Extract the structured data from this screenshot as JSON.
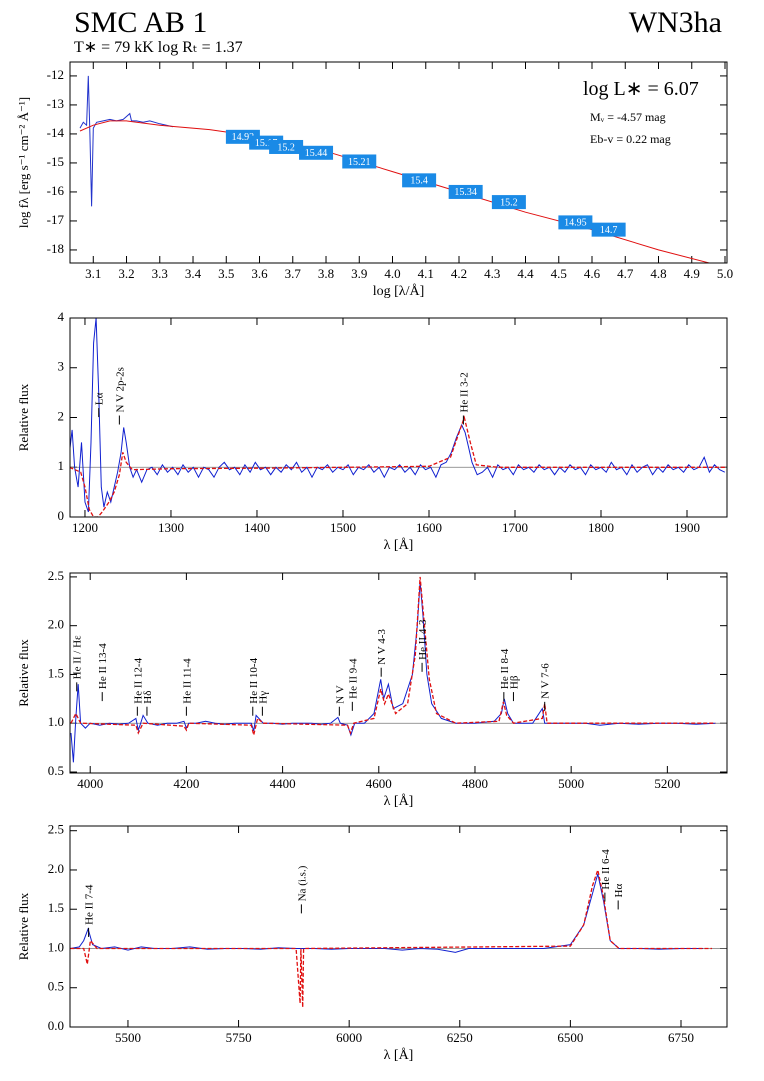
{
  "header": {
    "title": "SMC AB 1",
    "spectral_type": "WN3ha",
    "parameters": "T∗ =  79 kK  log Rₜ = 1.37"
  },
  "chart_data": [
    {
      "type": "line",
      "xlabel": "log [λ/Å]",
      "ylabel": "log fλ [erg s⁻¹ cm⁻² Å⁻¹]",
      "luminosity": "log L∗ =  6.07",
      "mv": "Mᵥ = -4.57 mag",
      "ebv": "Eb-v = 0.22 mag",
      "xlim": [
        3.03,
        5.006
      ],
      "ylim": [
        -18.45,
        -11.52
      ],
      "xticks": [
        3.1,
        3.2,
        3.3,
        3.4,
        3.5,
        3.6,
        3.7,
        3.8,
        3.9,
        {
          "value": 4,
          "label": "4.0"
        },
        4.1,
        4.2,
        4.3,
        4.4,
        4.5,
        4.6,
        4.7,
        4.8,
        4.9,
        {
          "value": 5,
          "label": "5.0"
        }
      ],
      "yticks": [
        -12,
        -13,
        -14,
        -15,
        -16,
        -17,
        -18
      ],
      "series": [
        {
          "color": "#2233cc",
          "x": [
            3.06,
            3.07,
            3.08,
            3.085,
            3.09,
            3.095,
            3.1,
            3.11,
            3.13,
            3.15,
            3.17,
            3.19,
            3.21,
            3.215,
            3.23,
            3.25,
            3.27,
            3.3,
            3.32,
            3.34
          ],
          "values": [
            -13.8,
            -13.6,
            -13.7,
            -12.0,
            -14.0,
            -16.5,
            -13.8,
            -13.6,
            -13.55,
            -13.5,
            -13.55,
            -13.5,
            -13.3,
            -13.55,
            -13.55,
            -13.6,
            -13.55,
            -13.65,
            -13.7,
            -13.75
          ]
        },
        {
          "color": "#e01010",
          "x": [
            3.06,
            3.1,
            3.15,
            3.2,
            3.3,
            3.35,
            3.45,
            3.6,
            3.8,
            4.0,
            4.2,
            4.4,
            4.6,
            4.8,
            4.97
          ],
          "values": [
            -13.9,
            -13.7,
            -13.55,
            -13.55,
            -13.7,
            -13.75,
            -13.85,
            -14.1,
            -14.6,
            -15.3,
            -16.0,
            -16.7,
            -17.3,
            -18.0,
            -18.5
          ]
        }
      ],
      "photometry": {
        "color": "#1a8ae6",
        "x": [
          3.55,
          3.62,
          3.68,
          3.77,
          3.9,
          4.08,
          4.22,
          4.35,
          4.55,
          4.65
        ],
        "values": [
          -14.1,
          -14.3,
          -14.45,
          -14.65,
          -14.95,
          -15.6,
          -16.0,
          -16.35,
          -17.05,
          -17.3
        ],
        "labels": [
          14.92,
          15.17,
          15.2,
          15.44,
          15.21,
          15.4,
          15.34,
          15.2,
          14.95,
          14.7
        ]
      }
    },
    {
      "type": "line",
      "xlabel": "λ [Å]",
      "ylabel": "Relative flux",
      "xlim": [
        1182.6,
        1946.5
      ],
      "ylim": [
        0,
        4
      ],
      "xticks": [
        1200,
        1300,
        1400,
        1500,
        1600,
        1700,
        1800,
        1900
      ],
      "yticks": [
        0,
        1,
        2,
        3,
        4
      ],
      "reference_line": 1,
      "series": [
        {
          "color": "#1020d0",
          "x": [
            1182,
            1185,
            1188,
            1192,
            1196,
            1200,
            1204,
            1207,
            1210,
            1213,
            1216,
            1219,
            1222,
            1226,
            1230,
            1234,
            1238,
            1242,
            1245,
            1248,
            1252,
            1256,
            1260,
            1266,
            1272,
            1278,
            1284,
            1290,
            1296,
            1302,
            1308,
            1314,
            1320,
            1326,
            1332,
            1338,
            1344,
            1350,
            1356,
            1362,
            1368,
            1374,
            1380,
            1386,
            1392,
            1398,
            1404,
            1410,
            1416,
            1422,
            1428,
            1434,
            1440,
            1446,
            1452,
            1458,
            1464,
            1470,
            1476,
            1482,
            1488,
            1494,
            1500,
            1506,
            1512,
            1518,
            1524,
            1530,
            1536,
            1542,
            1548,
            1554,
            1560,
            1566,
            1572,
            1578,
            1584,
            1590,
            1596,
            1602,
            1608,
            1614,
            1620,
            1626,
            1632,
            1638,
            1642,
            1646,
            1650,
            1656,
            1662,
            1668,
            1674,
            1680,
            1686,
            1692,
            1698,
            1704,
            1710,
            1716,
            1722,
            1728,
            1734,
            1740,
            1746,
            1752,
            1758,
            1764,
            1770,
            1776,
            1782,
            1788,
            1794,
            1800,
            1806,
            1812,
            1818,
            1824,
            1830,
            1836,
            1842,
            1848,
            1854,
            1860,
            1866,
            1872,
            1878,
            1884,
            1890,
            1896,
            1902,
            1908,
            1914,
            1920,
            1926,
            1932,
            1938,
            1944
          ],
          "values": [
            1.3,
            1.75,
            1.0,
            0.6,
            1.5,
            0.3,
            0.1,
            1.5,
            3.5,
            4.0,
            2.5,
            0.6,
            0.2,
            0.5,
            0.3,
            0.6,
            0.9,
            1.3,
            1.8,
            1.5,
            1.0,
            0.8,
            0.95,
            0.7,
            0.95,
            1.0,
            0.85,
            1.05,
            0.9,
            1.0,
            0.85,
            1.05,
            0.9,
            1.0,
            0.8,
            1.0,
            0.95,
            0.8,
            1.0,
            1.1,
            0.95,
            1.0,
            0.85,
            1.05,
            0.9,
            1.1,
            0.95,
            1.0,
            0.85,
            1.0,
            0.9,
            1.05,
            0.95,
            1.1,
            0.9,
            1.0,
            0.8,
            1.0,
            0.95,
            1.05,
            0.9,
            1.0,
            0.95,
            1.05,
            0.85,
            1.0,
            0.95,
            1.05,
            0.9,
            1.0,
            0.8,
            1.0,
            0.95,
            1.05,
            0.9,
            1.0,
            0.85,
            1.05,
            0.95,
            1.0,
            0.8,
            1.05,
            1.1,
            1.3,
            1.6,
            1.85,
            1.7,
            1.4,
            1.1,
            0.85,
            0.9,
            1.0,
            0.8,
            1.05,
            0.95,
            1.0,
            0.85,
            1.05,
            0.95,
            1.0,
            0.9,
            1.05,
            0.95,
            1.0,
            0.85,
            1.0,
            0.9,
            1.05,
            0.95,
            1.0,
            0.85,
            1.05,
            0.95,
            1.0,
            0.9,
            1.1,
            0.95,
            1.0,
            0.85,
            1.05,
            0.9,
            1.0,
            1.05,
            0.85,
            1.0,
            0.9,
            1.05,
            0.95,
            1.0,
            0.9,
            1.05,
            0.95,
            1.0,
            1.2,
            0.9,
            1.05,
            0.95,
            0.9
          ]
        },
        {
          "color": "#e01010",
          "dashed": true,
          "x": [
            1182,
            1195,
            1200,
            1205,
            1210,
            1215,
            1220,
            1228,
            1234,
            1240,
            1244,
            1248,
            1255,
            1300,
            1400,
            1500,
            1600,
            1625,
            1635,
            1641,
            1648,
            1655,
            1680,
            1800,
            1946
          ],
          "values": [
            1.0,
            0.9,
            0.6,
            0.15,
            0.0,
            0.0,
            0.1,
            0.3,
            0.5,
            0.85,
            1.3,
            1.1,
            0.95,
            0.97,
            0.98,
            1.0,
            1.02,
            1.2,
            1.7,
            2.0,
            1.5,
            1.05,
            1.0,
            1.0,
            1.0
          ]
        }
      ],
      "annotations": [
        {
          "text": "Lα",
          "x": 1216,
          "y": 2.25
        },
        {
          "text": "N V 2p-2s",
          "x": 1240,
          "y": 2.1
        },
        {
          "text": "He II 3-2",
          "x": 1640,
          "y": 2.1
        }
      ]
    },
    {
      "type": "line",
      "xlabel": "λ [Å]",
      "ylabel": "Relative flux",
      "xlim": [
        3958,
        5324
      ],
      "ylim": [
        0.49,
        2.54
      ],
      "xticks": [
        4000,
        4200,
        4400,
        4600,
        4800,
        5000,
        5200
      ],
      "yticks": [
        0.5,
        {
          "value": 1,
          "label": "1.0"
        },
        1.5,
        {
          "value": 2,
          "label": "2.0"
        },
        2.5
      ],
      "reference_line": 1,
      "series": [
        {
          "color": "#1020d0",
          "x": [
            3960,
            3965,
            3970,
            3975,
            3980,
            3990,
            4000,
            4020,
            4040,
            4060,
            4080,
            4095,
            4100,
            4105,
            4110,
            4120,
            4140,
            4160,
            4180,
            4195,
            4200,
            4205,
            4220,
            4240,
            4260,
            4280,
            4300,
            4320,
            4335,
            4340,
            4345,
            4360,
            4380,
            4400,
            4420,
            4440,
            4460,
            4480,
            4500,
            4515,
            4520,
            4535,
            4542,
            4550,
            4570,
            4590,
            4604,
            4610,
            4620,
            4630,
            4650,
            4670,
            4680,
            4686,
            4692,
            4700,
            4710,
            4730,
            4760,
            4800,
            4840,
            4855,
            4861,
            4868,
            4880,
            4900,
            4920,
            4940,
            4945,
            4960,
            5000,
            5030,
            5060,
            5100,
            5140,
            5180,
            5220,
            5260,
            5300
          ],
          "values": [
            0.9,
            0.6,
            1.05,
            1.4,
            1.0,
            0.95,
            1.0,
            0.98,
            1.0,
            0.99,
            1.0,
            1.05,
            0.93,
            1.0,
            1.08,
            1.0,
            0.98,
            1.0,
            1.0,
            1.02,
            0.95,
            1.0,
            1.0,
            1.02,
            1.0,
            0.99,
            1.0,
            1.0,
            1.0,
            0.92,
            1.08,
            1.0,
            1.0,
            0.99,
            1.0,
            1.0,
            1.0,
            0.99,
            1.0,
            1.06,
            1.0,
            0.98,
            0.88,
            1.0,
            1.0,
            1.1,
            1.45,
            1.25,
            1.4,
            1.15,
            1.2,
            1.5,
            2.0,
            2.45,
            2.1,
            1.5,
            1.2,
            1.05,
            1.0,
            1.0,
            1.02,
            1.1,
            1.25,
            1.1,
            1.0,
            1.0,
            1.0,
            1.15,
            1.0,
            1.0,
            1.0,
            1.0,
            0.98,
            1.0,
            0.99,
            1.0,
            1.0,
            0.99,
            1.0
          ]
        },
        {
          "color": "#e01010",
          "dashed": true,
          "x": [
            3960,
            3970,
            3980,
            4095,
            4100,
            4110,
            4195,
            4200,
            4205,
            4335,
            4340,
            4348,
            4360,
            4535,
            4541,
            4548,
            4590,
            4604,
            4612,
            4620,
            4635,
            4660,
            4676,
            4686,
            4695,
            4705,
            4720,
            4760,
            4850,
            4859,
            4866,
            4880,
            4940,
            4945,
            4950,
            5300
          ],
          "values": [
            1.0,
            1.1,
            1.0,
            0.98,
            0.9,
            1.0,
            0.97,
            0.93,
            1.0,
            0.98,
            0.88,
            1.05,
            1.0,
            0.98,
            0.9,
            1.0,
            1.05,
            1.35,
            1.2,
            1.3,
            1.1,
            1.2,
            1.7,
            2.5,
            2.0,
            1.45,
            1.1,
            1.0,
            1.02,
            1.22,
            1.08,
            1.0,
            1.05,
            1.2,
            1.0,
            1.0
          ]
        }
      ],
      "annotations": [
        {
          "text": "He II / Hε",
          "x": 3972,
          "y": 1.45
        },
        {
          "text": "He II 13-4",
          "x": 4025,
          "y": 1.35
        },
        {
          "text": "He II 12-4",
          "x": 4098,
          "y": 1.2
        },
        {
          "text": "Hδ",
          "x": 4118,
          "y": 1.2
        },
        {
          "text": "He II 11-4",
          "x": 4200,
          "y": 1.2
        },
        {
          "text": "He II 10-4",
          "x": 4338,
          "y": 1.2
        },
        {
          "text": "Hγ",
          "x": 4358,
          "y": 1.2
        },
        {
          "text": "N V",
          "x": 4518,
          "y": 1.2
        },
        {
          "text": "He II 9-4",
          "x": 4545,
          "y": 1.25
        },
        {
          "text": "N V 4-3",
          "x": 4605,
          "y": 1.6
        },
        {
          "text": "He II 4-3",
          "x": 4690,
          "y": 1.65
        },
        {
          "text": "He II 8-4",
          "x": 4860,
          "y": 1.35
        },
        {
          "text": "Hβ",
          "x": 4880,
          "y": 1.35
        },
        {
          "text": "N V 7-6",
          "x": 4945,
          "y": 1.25
        }
      ]
    },
    {
      "type": "line",
      "xlabel": "λ [Å]",
      "ylabel": "Relative flux",
      "xlim": [
        5369,
        6854
      ],
      "ylim": [
        0,
        2.56
      ],
      "xticks": [
        5500,
        5750,
        6000,
        6250,
        6500,
        6750
      ],
      "yticks": [
        {
          "value": 0,
          "label": "0.0"
        },
        0.5,
        {
          "value": 1,
          "label": "1.0"
        },
        1.5,
        {
          "value": 2,
          "label": "2.0"
        },
        2.5
      ],
      "reference_line": 1,
      "series": [
        {
          "color": "#1020d0",
          "x": [
            5370,
            5390,
            5400,
            5410,
            5420,
            5440,
            5470,
            5500,
            5530,
            5560,
            5600,
            5640,
            5680,
            5720,
            5760,
            5800,
            5840,
            5880,
            5920,
            5960,
            6000,
            6040,
            6080,
            6120,
            6160,
            6200,
            6240,
            6270,
            6320,
            6380,
            6440,
            6500,
            6530,
            6550,
            6562,
            6575,
            6590,
            6610,
            6660,
            6700,
            6750,
            6800
          ],
          "values": [
            1.0,
            1.02,
            1.1,
            1.25,
            1.05,
            1.0,
            1.02,
            0.98,
            1.02,
            1.0,
            1.0,
            1.02,
            0.99,
            1.0,
            1.0,
            0.99,
            1.01,
            1.0,
            1.0,
            0.99,
            1.0,
            1.0,
            1.0,
            0.98,
            1.0,
            0.99,
            0.95,
            1.0,
            1.0,
            1.0,
            1.0,
            1.05,
            1.3,
            1.7,
            1.95,
            1.6,
            1.1,
            1.0,
            1.0,
            0.99,
            1.0,
            1.0
          ]
        },
        {
          "color": "#e01010",
          "dashed": true,
          "x": [
            5370,
            5400,
            5408,
            5415,
            5430,
            5880,
            5889,
            5891,
            5895,
            5897,
            6500,
            6530,
            6550,
            6562,
            6575,
            6590,
            6610,
            6820
          ],
          "values": [
            1.0,
            1.0,
            0.8,
            1.1,
            1.0,
            1.0,
            0.3,
            1.0,
            0.25,
            1.0,
            1.03,
            1.3,
            1.8,
            2.0,
            1.65,
            1.1,
            1.0,
            1.0
          ]
        }
      ],
      "annotations": [
        {
          "text": "He II 7-4",
          "x": 5411,
          "y": 1.3
        },
        {
          "text": "Na (i.s.)",
          "x": 5892,
          "y": 1.6
        },
        {
          "text": "He II 6-4",
          "x": 6578,
          "y": 1.75
        },
        {
          "text": "Hα",
          "x": 6608,
          "y": 1.65
        }
      ]
    }
  ]
}
